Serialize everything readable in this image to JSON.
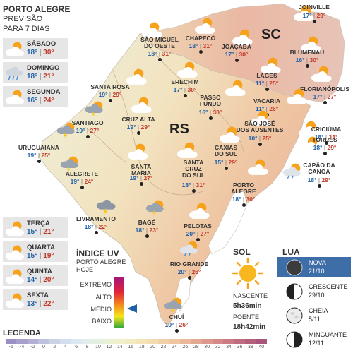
{
  "header": {
    "city": "PORTO ALEGRE",
    "line1": "PREVISÃO",
    "line2": "PARA 7 DIAS"
  },
  "forecast": [
    {
      "day": "SÁBADO",
      "min": "18°",
      "max": "30°",
      "icon": "sun-cloud-icon"
    },
    {
      "day": "DOMINGO",
      "min": "18°",
      "max": "21°",
      "icon": "rain-cloud-icon"
    },
    {
      "day": "SEGUNDA",
      "min": "16°",
      "max": "24°",
      "icon": "sun-cloud-icon"
    },
    {
      "day": "TERÇA",
      "min": "15°",
      "max": "21°",
      "icon": "sun-cloud-icon"
    },
    {
      "day": "QUARTA",
      "min": "15°",
      "max": "19°",
      "icon": "sun-cloud-icon"
    },
    {
      "day": "QUINTA",
      "min": "14°",
      "max": "20°",
      "icon": "sun-cloud-icon"
    },
    {
      "day": "SEXTA",
      "min": "13°",
      "max": "22°",
      "icon": "sun-cloud-icon"
    }
  ],
  "states": {
    "sc": "SC",
    "rs": "RS"
  },
  "cities": [
    {
      "name": "JOINVILLE",
      "min": "17°",
      "max": "29°",
      "icon": "sun-cloud-icon"
    },
    {
      "name": "SÃO MIGUEL\nDO OESTE",
      "min": "18°",
      "max": "31°",
      "icon": "sun-cloud-icon"
    },
    {
      "name": "CHAPECÓ",
      "min": "18°",
      "max": "31°",
      "icon": "sun-cloud-icon"
    },
    {
      "name": "JOAÇABA",
      "min": "17°",
      "max": "30°",
      "icon": "sun-cloud-icon"
    },
    {
      "name": "BLUMENAU",
      "min": "16°",
      "max": "30°",
      "icon": "sun-cloud-icon"
    },
    {
      "name": "LAGES",
      "min": "11°",
      "max": "25°",
      "icon": "sun-cloud-icon"
    },
    {
      "name": "FLORIANÓPOLIS",
      "min": "17°",
      "max": "27°",
      "icon": "sun-cloud-icon"
    },
    {
      "name": "SANTA ROSA",
      "min": "19°",
      "max": "29°",
      "icon": "sun-cloud-icon"
    },
    {
      "name": "ERECHIM",
      "min": "17°",
      "max": "30°",
      "icon": "sun-cloud-icon"
    },
    {
      "name": "PASSO\nFUNDO",
      "min": "16°",
      "max": "30°",
      "icon": "sun-cloud-icon"
    },
    {
      "name": "VACARIA",
      "min": "11°",
      "max": "26°",
      "icon": "sun-cloud-icon"
    },
    {
      "name": "CRICIÚMA",
      "min": "18°",
      "max": "33°",
      "icon": "sun-cloud-icon"
    },
    {
      "name": "SANTIAGO",
      "min": "19°",
      "max": "27°",
      "icon": "storm-sun-icon"
    },
    {
      "name": "CRUZ ALTA",
      "min": "19°",
      "max": "29°",
      "icon": "sun-cloud-icon"
    },
    {
      "name": "SÃO JOSÉ\nDOS AUSENTES",
      "min": "10°",
      "max": "25°",
      "icon": "sun-cloud-icon"
    },
    {
      "name": "TORRES",
      "min": "18°",
      "max": "29°",
      "icon": "sun-cloud-icon"
    },
    {
      "name": "URUGUAIANA",
      "min": "19°",
      "max": "25°",
      "icon": "storm-sun-icon"
    },
    {
      "name": "CAXIAS\nDO SUL",
      "min": "15°",
      "max": "29°",
      "icon": "sun-cloud-icon"
    },
    {
      "name": "ALEGRETE",
      "min": "19°",
      "max": "24°",
      "icon": "storm-sun-icon"
    },
    {
      "name": "SANTA\nMARIA",
      "min": "19°",
      "max": "27°",
      "icon": "sun-cloud-icon"
    },
    {
      "name": "SANTA\nCRUZ\nDO SUL",
      "min": "18°",
      "max": "31°",
      "icon": "sun-cloud-icon"
    },
    {
      "name": "CAPÃO DA\nCANOA",
      "min": "18°",
      "max": "29°",
      "icon": "rain-sun-icon"
    },
    {
      "name": "PORTO\nALEGRE",
      "min": "18°",
      "max": "30°",
      "icon": "sun-cloud-icon"
    },
    {
      "name": "LIVRAMENTO",
      "min": "18°",
      "max": "22°",
      "icon": "storm-cloud-icon"
    },
    {
      "name": "BAGÉ",
      "min": "18°",
      "max": "23°",
      "icon": "storm-sun-icon"
    },
    {
      "name": "PELOTAS",
      "min": "20°",
      "max": "27°",
      "icon": "sun-cloud-icon"
    },
    {
      "name": "RIO GRANDE",
      "min": "20°",
      "max": "26°",
      "icon": "rain-sun-icon"
    },
    {
      "name": "CHUÍ",
      "min": "19°",
      "max": "26°",
      "icon": "storm-sun-icon"
    }
  ],
  "uv": {
    "title": "ÍNDICE UV",
    "sub1": "PORTO ALEGRE",
    "sub2": "HOJE",
    "levels": [
      "EXTREMO",
      "ALTO",
      "MÉDIO",
      "BAIXO"
    ],
    "current": "MÉDIO"
  },
  "sun": {
    "title": "SOL",
    "rise_label": "NASCENTE",
    "rise": "5h36min",
    "set_label": "POENTE",
    "set": "18h42min"
  },
  "moon": {
    "title": "LUA",
    "phases": [
      {
        "name": "NOVA",
        "date": "21/10",
        "highlight": true
      },
      {
        "name": "CRESCENTE",
        "date": "29/10"
      },
      {
        "name": "CHEIA",
        "date": "5/11"
      },
      {
        "name": "MINGUANTE",
        "date": "12/11"
      }
    ]
  },
  "legend": {
    "title": "LEGENDA",
    "ticks": [
      "-6",
      "-4",
      "-2",
      "0",
      "2",
      "4",
      "6",
      "8",
      "10",
      "12",
      "14",
      "16",
      "18",
      "20",
      "22",
      "24",
      "26",
      "28",
      "30",
      "32",
      "34",
      "36",
      "38",
      "40"
    ],
    "colors": [
      "#9c8fc4",
      "#a79fcc",
      "#b4b0d5",
      "#bfc2de",
      "#c9d2e7",
      "#d3dfee",
      "#dbe7f1",
      "#e0ede9",
      "#e4f0df",
      "#e9f1d4",
      "#efefca",
      "#f2ebc2",
      "#f4e4b8",
      "#f3dcb0",
      "#f1d2a8",
      "#eec6a0",
      "#e9b899",
      "#e3a892",
      "#dc988c",
      "#d48887",
      "#cb7983",
      "#c06c80",
      "#b4607d",
      "#a8557b"
    ]
  },
  "colors": {
    "min": "#1f5fa8",
    "max": "#c0392b",
    "sun": "#f6a21d",
    "panel": "#e6e6e6",
    "moon_highlight": "#3e6ea8"
  }
}
